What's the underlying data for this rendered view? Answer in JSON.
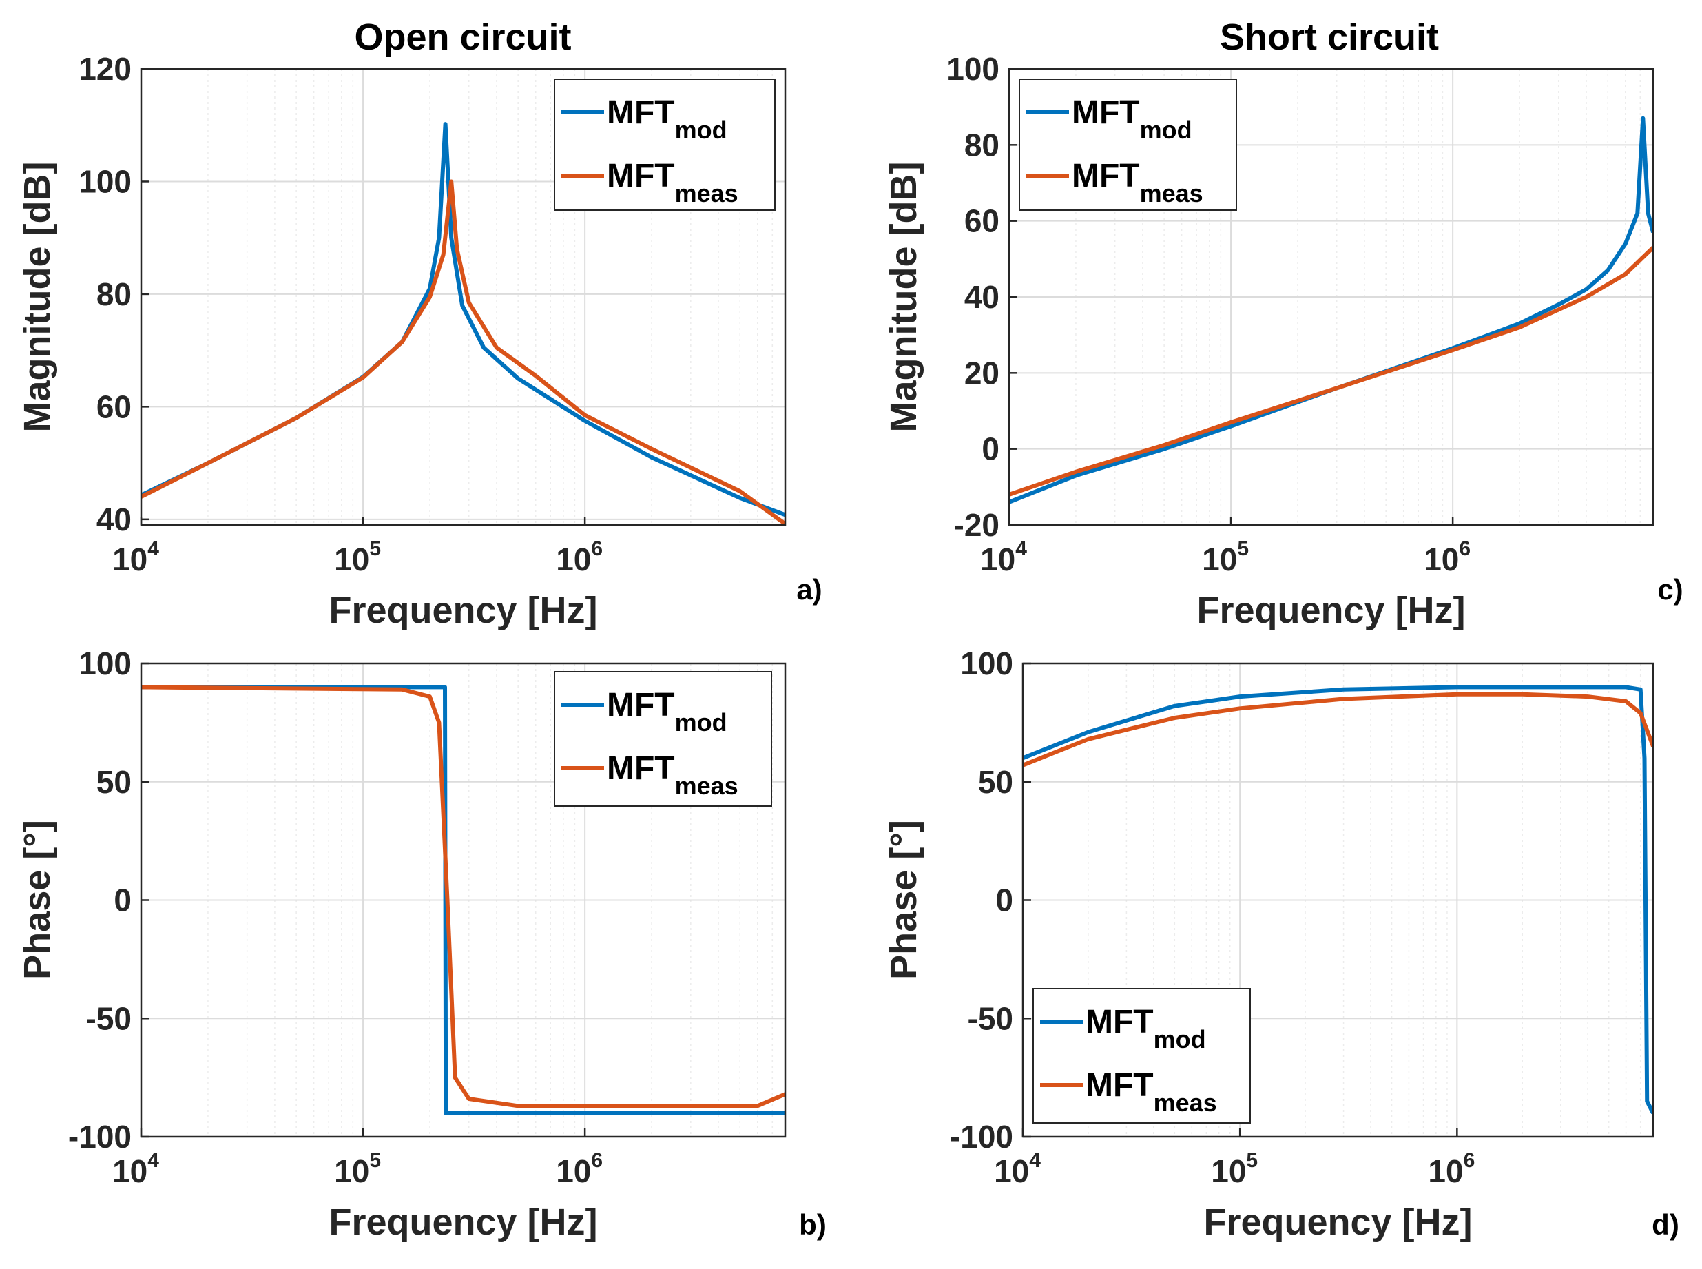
{
  "chart_data": [
    {
      "id": "a",
      "type": "line",
      "panel_label": "a)",
      "title": "Open circuit",
      "xlabel": "Frequency [Hz]",
      "ylabel": "Magnitude [dB]",
      "xscale": "log",
      "xlim": [
        10000,
        8000000
      ],
      "ylim": [
        39,
        120
      ],
      "yticks": [
        40,
        60,
        80,
        100,
        120
      ],
      "xticks": [
        {
          "base": "10",
          "exp": "4"
        },
        {
          "base": "10",
          "exp": "5"
        },
        {
          "base": "10",
          "exp": "6"
        }
      ],
      "grid": true,
      "legend": {
        "position": "top-right",
        "entries": [
          {
            "main": "MFT",
            "sub": "mod"
          },
          {
            "main": "MFT",
            "sub": "meas"
          }
        ]
      },
      "series": [
        {
          "name": "MFT mod",
          "color": "#0072BD",
          "points": [
            [
              10000,
              44.3
            ],
            [
              20000,
              50.0
            ],
            [
              50000,
              58.0
            ],
            [
              100000,
              65.3
            ],
            [
              150000,
              71.5
            ],
            [
              200000,
              81.0
            ],
            [
              220000,
              90.0
            ],
            [
              235000,
              110.2
            ],
            [
              250000,
              90.0
            ],
            [
              280000,
              78.0
            ],
            [
              350000,
              70.5
            ],
            [
              500000,
              65.0
            ],
            [
              1000000,
              57.5
            ],
            [
              2000000,
              51.0
            ],
            [
              5000000,
              43.8
            ],
            [
              8000000,
              40.8
            ]
          ]
        },
        {
          "name": "MFT meas",
          "color": "#D95319",
          "points": [
            [
              10000,
              44.0
            ],
            [
              20000,
              50.0
            ],
            [
              50000,
              58.0
            ],
            [
              100000,
              65.2
            ],
            [
              150000,
              71.5
            ],
            [
              200000,
              79.5
            ],
            [
              230000,
              87.0
            ],
            [
              250000,
              100.0
            ],
            [
              265000,
              88.0
            ],
            [
              300000,
              78.5
            ],
            [
              400000,
              70.5
            ],
            [
              600000,
              65.5
            ],
            [
              1000000,
              58.5
            ],
            [
              2000000,
              52.5
            ],
            [
              5000000,
              45.0
            ],
            [
              8000000,
              39.2
            ]
          ]
        }
      ]
    },
    {
      "id": "b",
      "type": "line",
      "panel_label": "b)",
      "title": "",
      "xlabel": "Frequency [Hz]",
      "ylabel": "Phase [°]",
      "xscale": "log",
      "xlim": [
        10000,
        8000000
      ],
      "ylim": [
        -100,
        100
      ],
      "yticks": [
        -100,
        -50,
        0,
        50,
        100
      ],
      "xticks": [
        {
          "base": "10",
          "exp": "4"
        },
        {
          "base": "10",
          "exp": "5"
        },
        {
          "base": "10",
          "exp": "6"
        }
      ],
      "grid": true,
      "legend": {
        "position": "top-right",
        "entries": [
          {
            "main": "MFT",
            "sub": "mod"
          },
          {
            "main": "MFT",
            "sub": "meas"
          }
        ]
      },
      "series": [
        {
          "name": "MFT mod",
          "color": "#0072BD",
          "points": [
            [
              10000,
              90
            ],
            [
              234000,
              90
            ],
            [
              236000,
              -90
            ],
            [
              8000000,
              -90
            ]
          ]
        },
        {
          "name": "MFT meas",
          "color": "#D95319",
          "points": [
            [
              10000,
              90
            ],
            [
              150000,
              89
            ],
            [
              200000,
              86
            ],
            [
              220000,
              75
            ],
            [
              240000,
              0
            ],
            [
              260000,
              -75
            ],
            [
              300000,
              -84
            ],
            [
              500000,
              -87
            ],
            [
              1000000,
              -87
            ],
            [
              3000000,
              -87
            ],
            [
              6000000,
              -87
            ],
            [
              8000000,
              -82
            ]
          ]
        }
      ]
    },
    {
      "id": "c",
      "type": "line",
      "panel_label": "c)",
      "title": "Short circuit",
      "xlabel": "Frequency [Hz]",
      "ylabel": "Magnitude [dB]",
      "xscale": "log",
      "xlim": [
        10000,
        8000000
      ],
      "ylim": [
        -20,
        100
      ],
      "yticks": [
        -20,
        0,
        20,
        40,
        60,
        80,
        100
      ],
      "xticks": [
        {
          "base": "10",
          "exp": "4"
        },
        {
          "base": "10",
          "exp": "5"
        },
        {
          "base": "10",
          "exp": "6"
        }
      ],
      "grid": true,
      "legend": {
        "position": "top-left",
        "entries": [
          {
            "main": "MFT",
            "sub": "mod"
          },
          {
            "main": "MFT",
            "sub": "meas"
          }
        ]
      },
      "series": [
        {
          "name": "MFT mod",
          "color": "#0072BD",
          "points": [
            [
              10000,
              -14
            ],
            [
              20000,
              -7
            ],
            [
              50000,
              0
            ],
            [
              100000,
              6
            ],
            [
              300000,
              16
            ],
            [
              1000000,
              26.5
            ],
            [
              2000000,
              33
            ],
            [
              3000000,
              38
            ],
            [
              4000000,
              42
            ],
            [
              5000000,
              47
            ],
            [
              6000000,
              54
            ],
            [
              6800000,
              62
            ],
            [
              7200000,
              87
            ],
            [
              7600000,
              62
            ],
            [
              8000000,
              57
            ]
          ]
        },
        {
          "name": "MFT meas",
          "color": "#D95319",
          "points": [
            [
              10000,
              -12
            ],
            [
              20000,
              -6
            ],
            [
              50000,
              1
            ],
            [
              100000,
              7
            ],
            [
              300000,
              16
            ],
            [
              1000000,
              26
            ],
            [
              2000000,
              32
            ],
            [
              4000000,
              40
            ],
            [
              6000000,
              46
            ],
            [
              8000000,
              53
            ]
          ]
        }
      ]
    },
    {
      "id": "d",
      "type": "line",
      "panel_label": "d)",
      "title": "",
      "xlabel": "Frequency [Hz]",
      "ylabel": "Phase [°]",
      "xscale": "log",
      "xlim": [
        10000,
        8000000
      ],
      "ylim": [
        -100,
        100
      ],
      "yticks": [
        -100,
        -50,
        0,
        50,
        100
      ],
      "xticks": [
        {
          "base": "10",
          "exp": "4"
        },
        {
          "base": "10",
          "exp": "5"
        },
        {
          "base": "10",
          "exp": "6"
        }
      ],
      "grid": true,
      "legend": {
        "position": "bottom-left",
        "entries": [
          {
            "main": "MFT",
            "sub": "mod"
          },
          {
            "main": "MFT",
            "sub": "meas"
          }
        ]
      },
      "series": [
        {
          "name": "MFT mod",
          "color": "#0072BD",
          "points": [
            [
              10000,
              60
            ],
            [
              20000,
              71
            ],
            [
              50000,
              82
            ],
            [
              100000,
              86
            ],
            [
              300000,
              89
            ],
            [
              1000000,
              90
            ],
            [
              3000000,
              90
            ],
            [
              6000000,
              90
            ],
            [
              7000000,
              89
            ],
            [
              7300000,
              60
            ],
            [
              7500000,
              -85
            ],
            [
              8000000,
              -90
            ]
          ]
        },
        {
          "name": "MFT meas",
          "color": "#D95319",
          "points": [
            [
              10000,
              57
            ],
            [
              20000,
              68
            ],
            [
              50000,
              77
            ],
            [
              100000,
              81
            ],
            [
              300000,
              85
            ],
            [
              1000000,
              87
            ],
            [
              2000000,
              87
            ],
            [
              4000000,
              86
            ],
            [
              6000000,
              84
            ],
            [
              7000000,
              79
            ],
            [
              8000000,
              65
            ]
          ]
        }
      ]
    }
  ]
}
